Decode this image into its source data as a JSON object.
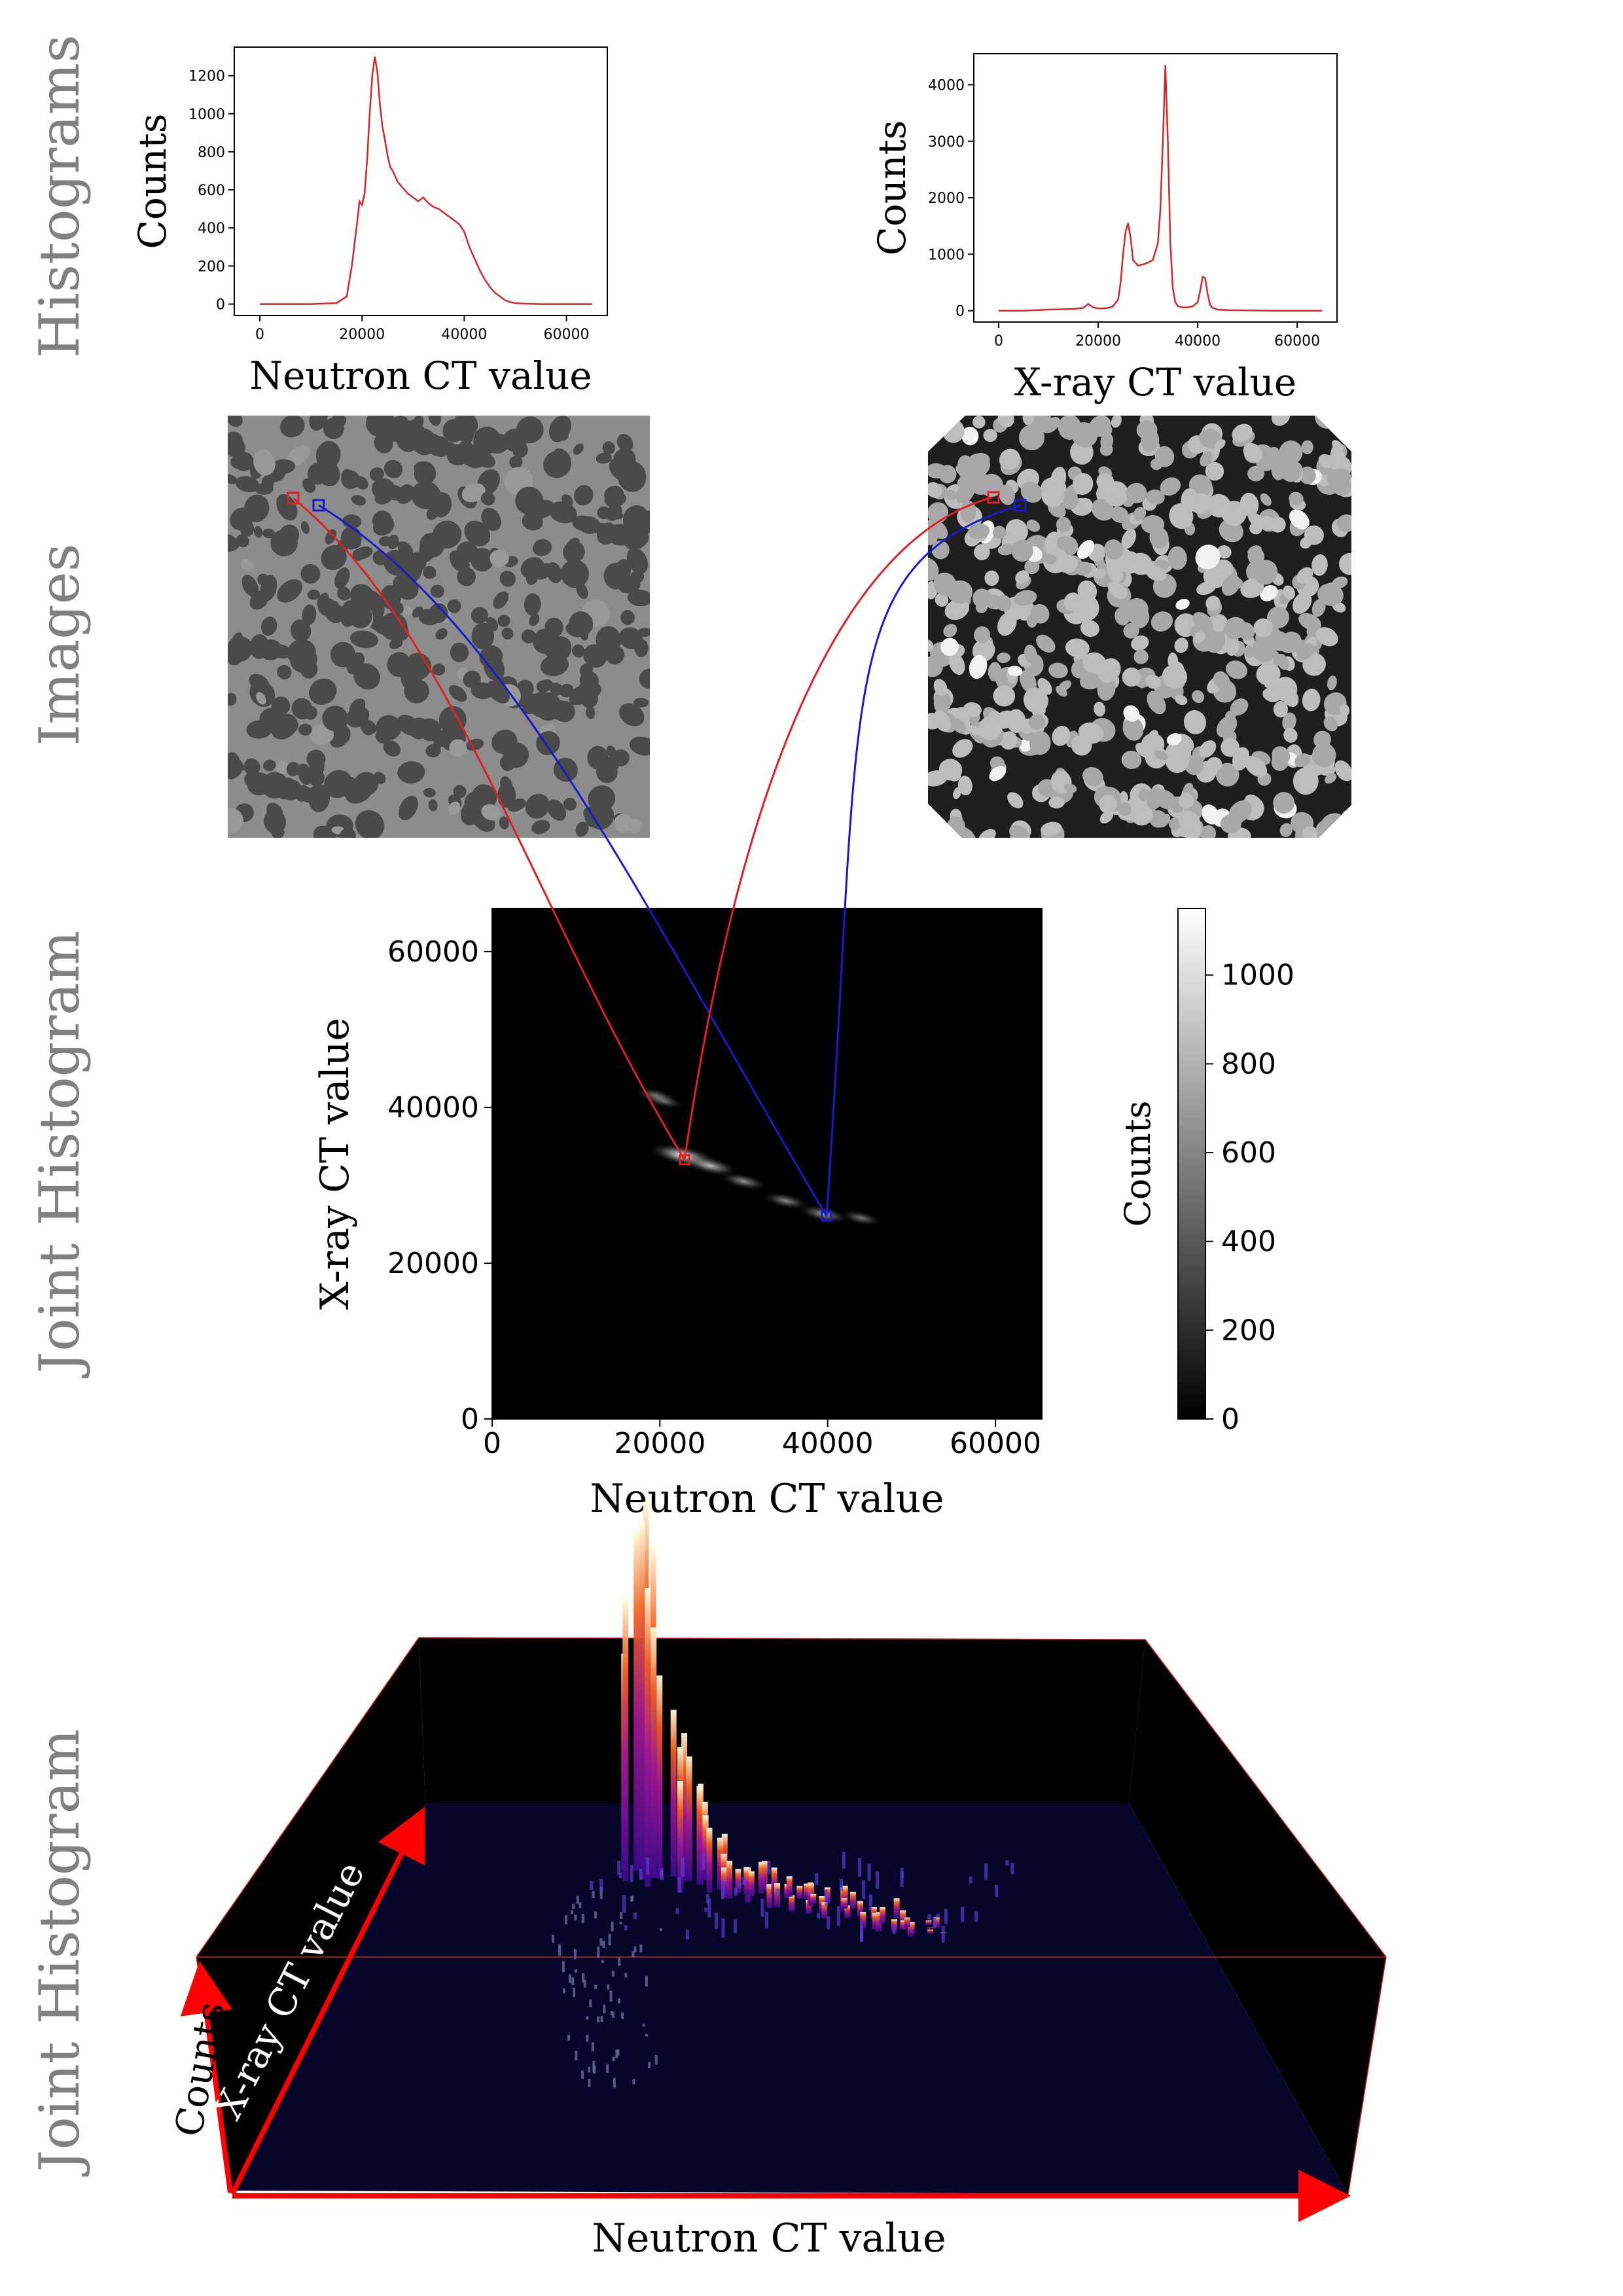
{
  "row_labels": {
    "histograms": "Histograms",
    "images": "Images",
    "joint_histogram": "Joint Histogram",
    "joint_histogram_3d": "Joint Histogram"
  },
  "colors": {
    "histogram_line": "#d62728",
    "marker_red": "#e02020",
    "marker_blue": "#1a1acc",
    "row_label": "#808080",
    "plane_3d": "#06062a",
    "axis_arrow_3d": "#ff0000"
  },
  "chart_data": [
    {
      "id": "neutron_histogram",
      "type": "line",
      "xlabel": "Neutron CT value",
      "ylabel": "Counts",
      "xlim": [
        -5000,
        68000
      ],
      "ylim": [
        -60,
        1350
      ],
      "xticks": [
        0,
        20000,
        40000,
        60000
      ],
      "xtick_labels": [
        "0",
        "20000",
        "40000",
        "60000"
      ],
      "yticks": [
        0,
        200,
        400,
        600,
        800,
        1000,
        1200
      ],
      "ytick_labels": [
        "0",
        "200",
        "400",
        "600",
        "800",
        "1000",
        "1200"
      ],
      "x": [
        0,
        5000,
        10000,
        15000,
        17000,
        18000,
        19000,
        19500,
        20000,
        20500,
        21000,
        21500,
        22000,
        22500,
        23000,
        23500,
        24000,
        24500,
        25000,
        25500,
        26000,
        27000,
        28000,
        29000,
        30000,
        31000,
        32000,
        33000,
        34000,
        35000,
        36000,
        37000,
        38000,
        39000,
        40000,
        41000,
        42000,
        43000,
        44000,
        45000,
        46000,
        47000,
        48000,
        49000,
        50000,
        52000,
        55000,
        60000,
        65000
      ],
      "y": [
        0,
        0,
        0,
        5,
        40,
        200,
        420,
        540,
        520,
        580,
        760,
        1000,
        1200,
        1300,
        1220,
        1050,
        930,
        860,
        780,
        720,
        700,
        640,
        610,
        580,
        560,
        540,
        560,
        530,
        510,
        500,
        480,
        460,
        440,
        420,
        380,
        300,
        240,
        180,
        130,
        90,
        60,
        40,
        20,
        10,
        5,
        2,
        0,
        0,
        0
      ]
    },
    {
      "id": "xray_histogram",
      "type": "line",
      "xlabel": "X-ray CT value",
      "ylabel": "Counts",
      "xlim": [
        -5000,
        68000
      ],
      "ylim": [
        -200,
        4550
      ],
      "xticks": [
        0,
        20000,
        40000,
        60000
      ],
      "xtick_labels": [
        "0",
        "20000",
        "40000",
        "60000"
      ],
      "yticks": [
        0,
        1000,
        2000,
        3000,
        4000
      ],
      "ytick_labels": [
        "0",
        "1000",
        "2000",
        "3000",
        "4000"
      ],
      "x": [
        0,
        5000,
        10000,
        15000,
        17000,
        18000,
        19000,
        20000,
        21000,
        22000,
        23000,
        24000,
        24500,
        25000,
        25500,
        26000,
        26500,
        27000,
        28000,
        29000,
        30000,
        31000,
        32000,
        32500,
        33000,
        33500,
        34000,
        34500,
        35000,
        35500,
        36000,
        37000,
        38000,
        39000,
        40000,
        40500,
        41000,
        41500,
        42000,
        42500,
        43000,
        44000,
        46000,
        50000,
        55000,
        60000,
        65000
      ],
      "y": [
        0,
        0,
        20,
        30,
        50,
        120,
        60,
        40,
        40,
        50,
        80,
        200,
        500,
        1000,
        1400,
        1550,
        1300,
        900,
        800,
        820,
        850,
        900,
        1200,
        1800,
        3000,
        4350,
        3000,
        1200,
        400,
        150,
        80,
        60,
        60,
        80,
        150,
        350,
        600,
        580,
        300,
        100,
        50,
        20,
        10,
        5,
        0,
        0,
        0
      ]
    },
    {
      "id": "joint_histogram_2d",
      "type": "heatmap",
      "xlabel": "Neutron CT value",
      "ylabel": "X-ray CT value",
      "xlim": [
        0,
        65535
      ],
      "ylim": [
        0,
        65535
      ],
      "xticks": [
        0,
        20000,
        40000,
        60000
      ],
      "xtick_labels": [
        "0",
        "20000",
        "40000",
        "60000"
      ],
      "yticks": [
        0,
        20000,
        40000,
        60000
      ],
      "ytick_labels": [
        "0",
        "20000",
        "40000",
        "60000"
      ],
      "colorbar_label": "Counts",
      "colorbar_range": [
        0,
        1150
      ],
      "colorbar_ticks": [
        0,
        200,
        400,
        600,
        800,
        1000
      ],
      "colorbar_tick_labels": [
        "0",
        "200",
        "400",
        "600",
        "800",
        "1000"
      ],
      "blobs": [
        {
          "x": 22800,
          "y": 33800,
          "count": 1150
        },
        {
          "x": 26000,
          "y": 32500,
          "count": 700
        },
        {
          "x": 30000,
          "y": 30500,
          "count": 400
        },
        {
          "x": 35000,
          "y": 28000,
          "count": 350
        },
        {
          "x": 39500,
          "y": 26300,
          "count": 500
        },
        {
          "x": 44000,
          "y": 25800,
          "count": 200
        },
        {
          "x": 19500,
          "y": 41500,
          "count": 250
        },
        {
          "x": 20500,
          "y": 40800,
          "count": 150
        }
      ],
      "markers": [
        {
          "color": "red",
          "x": 22800,
          "y": 33800
        },
        {
          "color": "blue",
          "x": 39600,
          "y": 26300
        }
      ]
    },
    {
      "id": "joint_histogram_3d",
      "type": "bar",
      "xlabel": "Neutron CT value",
      "ylabel": "X-ray CT value",
      "zlabel": "Counts"
    }
  ]
}
